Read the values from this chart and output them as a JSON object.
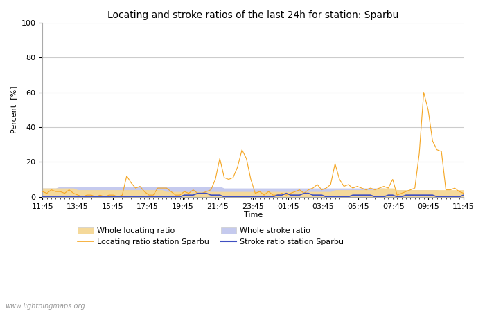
{
  "title": "Locating and stroke ratios of the last 24h for station: Sparbu",
  "ylabel": "Percent  [%]",
  "xlabel": "Time",
  "watermark": "www.lightningmaps.org",
  "x_labels": [
    "11:45",
    "13:45",
    "15:45",
    "17:45",
    "19:45",
    "21:45",
    "23:45",
    "01:45",
    "03:45",
    "05:45",
    "07:45",
    "09:45",
    "11:45"
  ],
  "ylim": [
    0,
    100
  ],
  "yticks": [
    0,
    20,
    40,
    60,
    80,
    100
  ],
  "background_color": "#ffffff",
  "plot_bg_color": "#ffffff",
  "colors": {
    "locating_station": "#f5a623",
    "locating_whole_fill": "#f5d99a",
    "stroke_station": "#3f4fc1",
    "stroke_whole_fill": "#c5caee"
  },
  "locating_station": [
    3,
    2,
    4,
    3,
    3,
    2,
    4,
    2,
    1,
    0,
    1,
    1,
    0,
    1,
    0,
    1,
    1,
    0,
    1,
    12,
    8,
    5,
    6,
    3,
    1,
    1,
    5,
    5,
    5,
    3,
    1,
    1,
    3,
    2,
    4,
    2,
    2,
    3,
    4,
    10,
    22,
    11,
    10,
    11,
    17,
    27,
    22,
    10,
    2,
    3,
    1,
    3,
    1,
    1,
    2,
    1,
    2,
    3,
    4,
    2,
    4,
    5,
    7,
    4,
    5,
    7,
    19,
    10,
    6,
    7,
    5,
    6,
    5,
    4,
    5,
    4,
    5,
    6,
    5,
    10,
    1,
    2,
    3,
    4,
    5,
    25,
    60,
    50,
    32,
    27,
    26,
    4,
    4,
    5,
    3,
    2
  ],
  "locating_whole": [
    5,
    5,
    5,
    5,
    5,
    5,
    5,
    5,
    4,
    4,
    4,
    4,
    4,
    4,
    4,
    4,
    4,
    4,
    4,
    4,
    4,
    4,
    4,
    4,
    4,
    4,
    4,
    4,
    3,
    3,
    3,
    3,
    3,
    3,
    3,
    3,
    3,
    3,
    3,
    3,
    3,
    3,
    3,
    3,
    3,
    3,
    3,
    3,
    3,
    3,
    3,
    3,
    3,
    3,
    3,
    3,
    3,
    3,
    3,
    3,
    3,
    3,
    3,
    3,
    3,
    3,
    4,
    4,
    4,
    4,
    4,
    4,
    4,
    4,
    4,
    4,
    5,
    5,
    5,
    5,
    4,
    4,
    4,
    4,
    4,
    4,
    4,
    4,
    4,
    4,
    4,
    4,
    4,
    4,
    4,
    4
  ],
  "stroke_station": [
    0,
    0,
    0,
    0,
    0,
    0,
    0,
    0,
    0,
    0,
    0,
    0,
    0,
    0,
    0,
    0,
    0,
    0,
    0,
    0,
    0,
    0,
    0,
    0,
    0,
    0,
    0,
    0,
    0,
    0,
    0,
    0,
    1,
    1,
    1,
    2,
    2,
    2,
    1,
    1,
    1,
    0,
    0,
    0,
    0,
    0,
    0,
    0,
    0,
    0,
    0,
    0,
    0,
    1,
    1,
    2,
    1,
    1,
    1,
    2,
    2,
    1,
    1,
    1,
    0,
    0,
    0,
    0,
    0,
    0,
    1,
    1,
    1,
    1,
    1,
    0,
    0,
    0,
    1,
    1,
    0,
    0,
    1,
    1,
    1,
    1,
    1,
    1,
    1,
    0,
    0,
    0,
    0,
    0,
    0,
    1
  ],
  "stroke_whole": [
    5,
    5,
    5,
    5,
    6,
    6,
    6,
    6,
    6,
    6,
    6,
    6,
    6,
    6,
    6,
    6,
    6,
    6,
    6,
    6,
    6,
    6,
    6,
    6,
    6,
    6,
    6,
    6,
    6,
    6,
    6,
    6,
    6,
    6,
    6,
    6,
    6,
    6,
    6,
    6,
    6,
    5,
    5,
    5,
    5,
    5,
    5,
    5,
    5,
    5,
    5,
    5,
    5,
    5,
    5,
    5,
    5,
    5,
    5,
    5,
    5,
    5,
    5,
    5,
    5,
    5,
    5,
    5,
    5,
    5,
    5,
    5,
    5,
    5,
    5,
    5,
    5,
    5,
    4,
    4,
    4,
    4,
    4,
    4,
    4,
    4,
    4,
    4,
    4,
    4,
    3,
    3,
    3,
    3,
    3,
    3
  ]
}
